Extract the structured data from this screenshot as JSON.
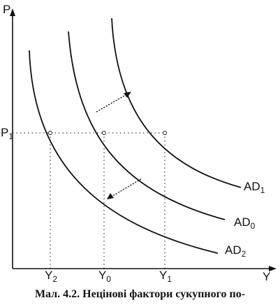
{
  "chart_data": {
    "type": "line",
    "xlabel": "Y",
    "ylabel": "P",
    "y_tick_label": "P1",
    "x_tick_labels": [
      "Y2",
      "Y0",
      "Y1"
    ],
    "series": [
      {
        "name": "AD1"
      },
      {
        "name": "AD0"
      },
      {
        "name": "AD2"
      }
    ],
    "shift_arrows": [
      {
        "from": "AD0",
        "to": "AD1",
        "direction": "right"
      },
      {
        "from": "AD0",
        "to": "AD2",
        "direction": "left"
      }
    ],
    "grid": false,
    "legend": "curve labels at right end"
  },
  "caption": "Мал. 4.2. Нецінові фактори сукупного по-"
}
